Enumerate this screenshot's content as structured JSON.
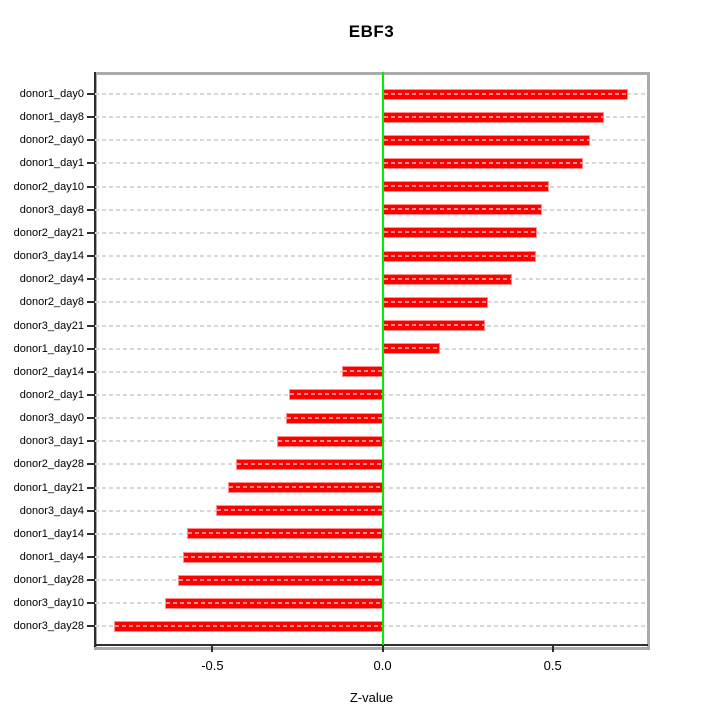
{
  "chart_data": {
    "type": "bar",
    "orientation": "horizontal",
    "title": "EBF3",
    "xlabel": "Z-value",
    "ylabel": "",
    "categories": [
      "donor1_day0",
      "donor1_day8",
      "donor2_day0",
      "donor1_day1",
      "donor2_day10",
      "donor3_day8",
      "donor2_day21",
      "donor3_day14",
      "donor2_day4",
      "donor2_day8",
      "donor3_day21",
      "donor1_day10",
      "donor2_day14",
      "donor2_day1",
      "donor3_day0",
      "donor3_day1",
      "donor2_day28",
      "donor1_day21",
      "donor3_day4",
      "donor1_day14",
      "donor1_day4",
      "donor1_day28",
      "donor3_day10",
      "donor3_day28"
    ],
    "values": [
      0.72,
      0.65,
      0.61,
      0.59,
      0.49,
      0.47,
      0.455,
      0.45,
      0.38,
      0.31,
      0.3,
      0.17,
      -0.12,
      -0.275,
      -0.285,
      -0.31,
      -0.43,
      -0.455,
      -0.49,
      -0.575,
      -0.585,
      -0.6,
      -0.64,
      -0.79
    ],
    "x_ticks": [
      -0.5,
      0.0,
      0.5
    ],
    "x_tick_labels": [
      "-0.5",
      "0.0",
      "0.5"
    ],
    "xlim": [
      -0.845,
      0.78
    ],
    "grid": "horizontal dashed line per bar row",
    "legend": "none",
    "bar_color": "#ff0000",
    "zero_line_color": "#00ee00",
    "grid_color": "#d7d7d7"
  }
}
